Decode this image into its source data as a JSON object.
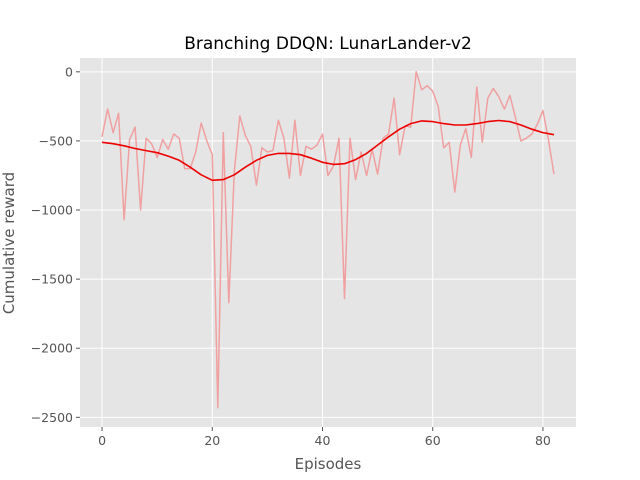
{
  "chart_data": {
    "type": "line",
    "title": "Branching DDQN: LunarLander-v2",
    "xlabel": "Episodes",
    "ylabel": "Cumulative reward",
    "xlim": [
      -4,
      86
    ],
    "ylim": [
      -2570,
      100
    ],
    "x_ticks": [
      0,
      20,
      40,
      60,
      80
    ],
    "y_ticks": [
      0,
      -500,
      -1000,
      -1500,
      -2000,
      -2500
    ],
    "grid": true,
    "legend": "none",
    "series": [
      {
        "style": "raw",
        "color": "#f0a0a0",
        "x": [
          0,
          1,
          2,
          3,
          4,
          5,
          6,
          7,
          8,
          9,
          10,
          11,
          12,
          13,
          14,
          15,
          16,
          17,
          18,
          19,
          20,
          21,
          22,
          23,
          24,
          25,
          26,
          27,
          28,
          29,
          30,
          31,
          32,
          33,
          34,
          35,
          36,
          37,
          38,
          39,
          40,
          41,
          42,
          43,
          44,
          45,
          46,
          47,
          48,
          49,
          50,
          51,
          52,
          53,
          54,
          55,
          56,
          57,
          58,
          59,
          60,
          61,
          62,
          63,
          64,
          65,
          66,
          67,
          68,
          69,
          70,
          71,
          72,
          73,
          74,
          75,
          76,
          77,
          78,
          79,
          80,
          81,
          82
        ],
        "values": [
          -470,
          -270,
          -440,
          -300,
          -1070,
          -490,
          -400,
          -1000,
          -480,
          -520,
          -620,
          -490,
          -560,
          -450,
          -480,
          -700,
          -700,
          -580,
          -370,
          -500,
          -600,
          -2430,
          -440,
          -1670,
          -720,
          -320,
          -460,
          -540,
          -820,
          -550,
          -580,
          -570,
          -350,
          -480,
          -770,
          -350,
          -750,
          -540,
          -560,
          -530,
          -450,
          -750,
          -680,
          -480,
          -1640,
          -480,
          -780,
          -580,
          -750,
          -560,
          -740,
          -480,
          -450,
          -190,
          -600,
          -390,
          -400,
          0,
          -130,
          -100,
          -140,
          -250,
          -550,
          -510,
          -870,
          -530,
          -410,
          -620,
          -110,
          -510,
          -190,
          -120,
          -180,
          -270,
          -170,
          -330,
          -500,
          -480,
          -450,
          -380,
          -280,
          -490,
          -740
        ]
      },
      {
        "style": "smoothed",
        "color": "#ee0000",
        "x": [
          0,
          2,
          4,
          6,
          8,
          10,
          12,
          14,
          16,
          18,
          20,
          22,
          24,
          26,
          28,
          30,
          32,
          34,
          36,
          38,
          40,
          42,
          44,
          46,
          48,
          50,
          52,
          54,
          56,
          58,
          60,
          62,
          64,
          66,
          68,
          70,
          72,
          74,
          76,
          78,
          80,
          82
        ],
        "values": [
          -510,
          -520,
          -535,
          -555,
          -570,
          -585,
          -610,
          -640,
          -690,
          -745,
          -785,
          -780,
          -745,
          -690,
          -640,
          -605,
          -590,
          -590,
          -600,
          -625,
          -655,
          -670,
          -665,
          -635,
          -590,
          -530,
          -470,
          -415,
          -375,
          -355,
          -360,
          -375,
          -385,
          -385,
          -375,
          -360,
          -352,
          -360,
          -385,
          -415,
          -440,
          -455
        ]
      }
    ]
  }
}
